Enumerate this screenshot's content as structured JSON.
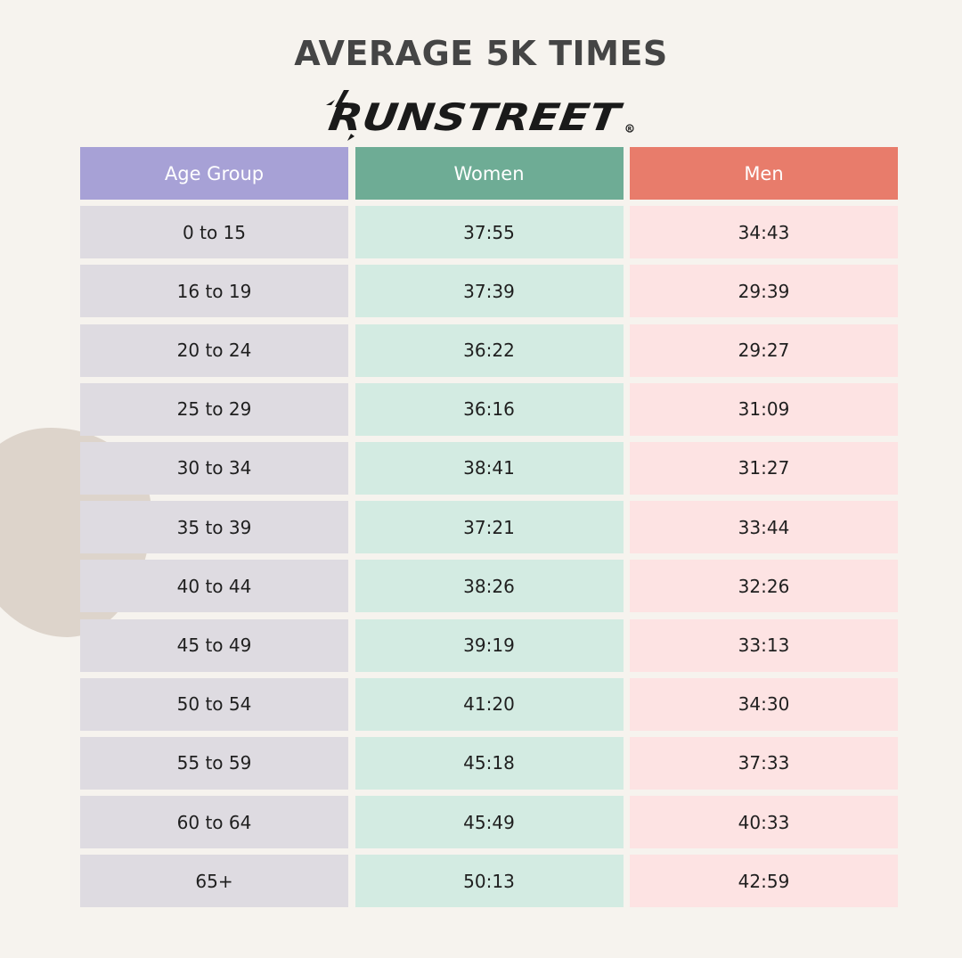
{
  "title": "AVERAGE 5K TIMES",
  "brand": {
    "logo_text": "RUNSTREET",
    "logo_icon": "lightning-bolt-icon"
  },
  "colors": {
    "background": "#f6f3ee",
    "header_age": "#a7a1d6",
    "header_women": "#6eac95",
    "header_men": "#e87c6b",
    "cell_age": "#dedbe1",
    "cell_women": "#d3ebe2",
    "cell_men": "#fde3e3"
  },
  "chart_data": {
    "type": "table",
    "title": "AVERAGE 5K TIMES",
    "columns": [
      "Age Group",
      "Women",
      "Men"
    ],
    "rows": [
      [
        "0 to 15",
        "37:55",
        "34:43"
      ],
      [
        "16 to 19",
        "37:39",
        "29:39"
      ],
      [
        "20 to 24",
        "36:22",
        "29:27"
      ],
      [
        "25 to 29",
        "36:16",
        "31:09"
      ],
      [
        "30 to 34",
        "38:41",
        "31:27"
      ],
      [
        "35 to 39",
        "37:21",
        "33:44"
      ],
      [
        "40 to 44",
        "38:26",
        "32:26"
      ],
      [
        "45 to 49",
        "39:19",
        "33:13"
      ],
      [
        "50 to 54",
        "41:20",
        "34:30"
      ],
      [
        "55 to 59",
        "45:18",
        "37:33"
      ],
      [
        "60 to 64",
        "45:49",
        "40:33"
      ],
      [
        "65+",
        "50:13",
        "42:59"
      ]
    ]
  }
}
